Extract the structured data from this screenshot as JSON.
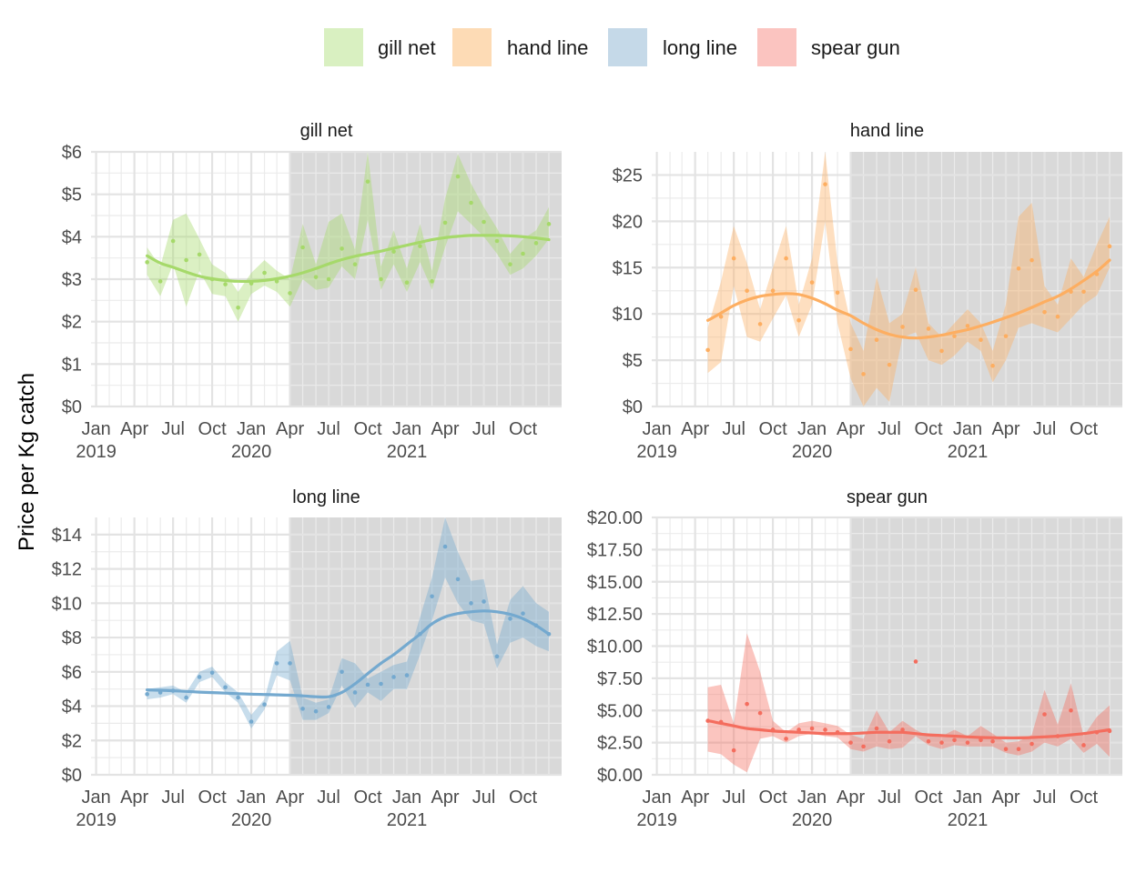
{
  "chart_data": {
    "type": "line",
    "ylabel": "Price per Kg catch",
    "xlabel": "",
    "legend": {
      "position": "top",
      "entries": [
        {
          "name": "gill net",
          "color": "#d9f0c1"
        },
        {
          "name": "hand line",
          "color": "#fddbb5"
        },
        {
          "name": "long line",
          "color": "#c5d9e8"
        },
        {
          "name": "spear gun",
          "color": "#fbc4c0"
        }
      ]
    },
    "x_ticks": [
      {
        "date": "2019-01-01",
        "label": [
          "Jan",
          "2019"
        ]
      },
      {
        "date": "2019-04-01",
        "label": [
          "Apr"
        ]
      },
      {
        "date": "2019-07-01",
        "label": [
          "Jul"
        ]
      },
      {
        "date": "2019-10-01",
        "label": [
          "Oct"
        ]
      },
      {
        "date": "2020-01-01",
        "label": [
          "Jan",
          "2020"
        ]
      },
      {
        "date": "2020-04-01",
        "label": [
          "Apr"
        ]
      },
      {
        "date": "2020-07-01",
        "label": [
          "Jul"
        ]
      },
      {
        "date": "2020-10-01",
        "label": [
          "Oct"
        ]
      },
      {
        "date": "2021-01-01",
        "label": [
          "Jan",
          "2021"
        ]
      },
      {
        "date": "2021-04-01",
        "label": [
          "Apr"
        ]
      },
      {
        "date": "2021-07-01",
        "label": [
          "Jul"
        ]
      },
      {
        "date": "2021-10-01",
        "label": [
          "Oct"
        ]
      }
    ],
    "x_range": [
      "2018-12-20",
      "2021-12-31"
    ],
    "shaded_period": {
      "start": "2020-04-01",
      "end": "2021-12-31"
    },
    "grid": true,
    "facets": [
      {
        "title": "gill net",
        "line_color": "#a6d96a",
        "fill_color": "#a6d96a",
        "ylim": [
          0,
          6
        ],
        "y_ticks": [
          0,
          1,
          2,
          3,
          4,
          5,
          6
        ],
        "y_tick_labels": [
          "$0",
          "$1",
          "$2",
          "$3",
          "$4",
          "$5",
          "$6"
        ],
        "dates": [
          "2019-05-01",
          "2019-06-01",
          "2019-07-01",
          "2019-08-01",
          "2019-09-01",
          "2019-10-01",
          "2019-11-01",
          "2019-12-01",
          "2020-01-01",
          "2020-02-01",
          "2020-03-01",
          "2020-04-01",
          "2020-05-01",
          "2020-06-01",
          "2020-07-01",
          "2020-08-01",
          "2020-09-01",
          "2020-10-01",
          "2020-11-01",
          "2020-12-01",
          "2021-01-01",
          "2021-02-01",
          "2021-03-01",
          "2021-04-01",
          "2021-05-01",
          "2021-06-01",
          "2021-07-01",
          "2021-08-01",
          "2021-09-01",
          "2021-10-01",
          "2021-11-01",
          "2021-12-01"
        ],
        "values": [
          3.4,
          2.95,
          3.9,
          3.45,
          3.58,
          3.0,
          2.88,
          2.33,
          2.9,
          3.15,
          2.95,
          2.67,
          3.75,
          3.05,
          3.0,
          3.72,
          3.35,
          5.3,
          3.0,
          3.65,
          2.92,
          3.78,
          2.95,
          4.33,
          5.42,
          4.8,
          4.35,
          3.9,
          3.35,
          3.6,
          3.85,
          4.3
        ],
        "lower": [
          3.1,
          2.6,
          3.35,
          2.35,
          3.2,
          2.65,
          2.6,
          2.0,
          2.65,
          2.85,
          2.7,
          2.35,
          3.0,
          2.75,
          2.8,
          3.3,
          3.0,
          4.4,
          2.75,
          3.35,
          2.7,
          3.4,
          2.75,
          3.75,
          4.6,
          4.3,
          4.0,
          3.6,
          3.1,
          3.25,
          3.55,
          3.95
        ],
        "upper": [
          3.75,
          3.3,
          4.4,
          4.55,
          3.95,
          3.35,
          3.15,
          2.7,
          3.15,
          3.45,
          3.2,
          3.0,
          4.3,
          3.35,
          4.35,
          4.55,
          3.7,
          6.0,
          3.3,
          4.15,
          3.25,
          4.3,
          3.2,
          4.9,
          5.95,
          5.25,
          4.7,
          4.2,
          3.6,
          3.95,
          4.15,
          4.7
        ],
        "smooth": [
          3.55,
          3.38,
          3.28,
          3.17,
          3.07,
          3.01,
          2.97,
          2.95,
          2.95,
          2.97,
          3.01,
          3.07,
          3.15,
          3.25,
          3.36,
          3.46,
          3.54,
          3.6,
          3.66,
          3.73,
          3.8,
          3.87,
          3.93,
          3.98,
          4.01,
          4.03,
          4.03,
          4.03,
          4.02,
          4.0,
          3.97,
          3.93
        ]
      },
      {
        "title": "hand line",
        "line_color": "#fdae61",
        "fill_color": "#fdae61",
        "ylim": [
          0,
          27.5
        ],
        "y_ticks": [
          0,
          5,
          10,
          15,
          20,
          25
        ],
        "y_tick_labels": [
          "$0",
          "$5",
          "$10",
          "$15",
          "$20",
          "$25"
        ],
        "dates": [
          "2019-05-01",
          "2019-06-01",
          "2019-07-01",
          "2019-08-01",
          "2019-09-01",
          "2019-10-01",
          "2019-11-01",
          "2019-12-01",
          "2020-01-01",
          "2020-02-01",
          "2020-03-01",
          "2020-04-01",
          "2020-05-01",
          "2020-06-01",
          "2020-07-01",
          "2020-08-01",
          "2020-09-01",
          "2020-10-01",
          "2020-11-01",
          "2020-12-01",
          "2021-01-01",
          "2021-02-01",
          "2021-03-01",
          "2021-04-01",
          "2021-05-01",
          "2021-06-01",
          "2021-07-01",
          "2021-08-01",
          "2021-09-01",
          "2021-10-01",
          "2021-11-01",
          "2021-12-01"
        ],
        "values": [
          6.1,
          9.7,
          16.0,
          12.5,
          8.9,
          12.5,
          16.0,
          9.3,
          13.4,
          24.0,
          12.3,
          6.2,
          3.5,
          7.2,
          4.5,
          8.6,
          12.6,
          8.4,
          6.0,
          7.6,
          8.7,
          7.2,
          4.4,
          7.6,
          14.9,
          15.8,
          10.2,
          9.7,
          12.4,
          12.4,
          14.3,
          17.3
        ],
        "lower": [
          3.6,
          4.8,
          13.0,
          7.5,
          7.0,
          9.5,
          12.0,
          7.5,
          11.0,
          20.0,
          9.0,
          3.0,
          0.0,
          2.0,
          0.5,
          7.5,
          8.0,
          5.0,
          4.5,
          5.5,
          7.0,
          6.0,
          2.6,
          5.0,
          8.5,
          9.0,
          8.5,
          8.0,
          9.5,
          11.0,
          12.0,
          15.0
        ],
        "upper": [
          8.5,
          13.5,
          19.5,
          15.5,
          10.5,
          15.0,
          19.5,
          11.0,
          16.0,
          27.5,
          15.5,
          9.0,
          6.0,
          14.0,
          9.0,
          10.0,
          15.0,
          9.0,
          7.5,
          9.0,
          10.5,
          9.0,
          6.0,
          11.0,
          20.5,
          22.0,
          13.0,
          11.0,
          16.0,
          14.0,
          17.5,
          20.5
        ],
        "smooth": [
          9.3,
          10.1,
          10.9,
          11.5,
          11.9,
          12.1,
          12.2,
          12.1,
          11.7,
          11.1,
          10.4,
          9.8,
          9.0,
          8.3,
          7.8,
          7.5,
          7.4,
          7.5,
          7.7,
          8.0,
          8.3,
          8.7,
          9.1,
          9.6,
          10.1,
          10.7,
          11.3,
          11.9,
          12.7,
          13.6,
          14.6,
          15.8
        ]
      },
      {
        "title": "long line",
        "line_color": "#74a9cf",
        "fill_color": "#74a9cf",
        "ylim": [
          0,
          15
        ],
        "y_ticks": [
          0,
          2,
          4,
          6,
          8,
          10,
          12,
          14
        ],
        "y_tick_labels": [
          "$0",
          "$2",
          "$4",
          "$6",
          "$8",
          "$10",
          "$12",
          "$14"
        ],
        "dates": [
          "2019-05-01",
          "2019-06-01",
          "2019-07-01",
          "2019-08-01",
          "2019-09-01",
          "2019-10-01",
          "2019-11-01",
          "2019-12-01",
          "2020-01-01",
          "2020-02-01",
          "2020-03-01",
          "2020-04-01",
          "2020-05-01",
          "2020-06-01",
          "2020-07-01",
          "2020-08-01",
          "2020-09-01",
          "2020-10-01",
          "2020-11-01",
          "2020-12-01",
          "2021-01-01",
          "2021-02-01",
          "2021-03-01",
          "2021-04-01",
          "2021-05-01",
          "2021-06-01",
          "2021-07-01",
          "2021-08-01",
          "2021-09-01",
          "2021-10-01",
          "2021-11-01",
          "2021-12-01"
        ],
        "values": [
          4.7,
          4.8,
          4.9,
          4.5,
          5.7,
          5.95,
          5.1,
          4.5,
          3.1,
          4.1,
          6.5,
          6.5,
          3.85,
          3.7,
          3.95,
          6.0,
          4.8,
          5.25,
          5.3,
          5.7,
          5.8,
          8.2,
          10.4,
          13.3,
          11.4,
          10.0,
          10.1,
          6.9,
          9.1,
          9.4,
          8.7,
          8.2
        ],
        "lower": [
          4.4,
          4.5,
          4.7,
          4.2,
          5.4,
          5.7,
          4.8,
          4.2,
          2.7,
          3.8,
          5.8,
          5.5,
          3.2,
          3.2,
          3.6,
          5.2,
          3.9,
          4.8,
          4.3,
          5.0,
          5.0,
          7.0,
          9.0,
          11.5,
          10.0,
          9.0,
          8.8,
          6.2,
          7.7,
          8.0,
          7.5,
          7.2
        ],
        "upper": [
          5.0,
          5.1,
          5.2,
          4.8,
          6.0,
          6.3,
          5.4,
          4.8,
          3.5,
          4.4,
          7.2,
          7.8,
          4.5,
          4.2,
          4.4,
          6.8,
          6.5,
          5.6,
          6.0,
          6.4,
          6.6,
          9.2,
          11.5,
          15.0,
          13.0,
          11.3,
          11.4,
          7.6,
          10.2,
          11.0,
          10.0,
          9.5
        ],
        "smooth": [
          4.95,
          4.93,
          4.9,
          4.86,
          4.82,
          4.79,
          4.76,
          4.73,
          4.7,
          4.68,
          4.66,
          4.64,
          4.6,
          4.55,
          4.55,
          4.8,
          5.3,
          5.9,
          6.5,
          7.0,
          7.6,
          8.2,
          8.8,
          9.2,
          9.4,
          9.5,
          9.55,
          9.5,
          9.35,
          9.1,
          8.7,
          8.2
        ]
      },
      {
        "title": "spear gun",
        "line_color": "#f46d5e",
        "fill_color": "#f46d5e",
        "ylim": [
          0,
          20
        ],
        "y_ticks": [
          0,
          2.5,
          5,
          7.5,
          10,
          12.5,
          15,
          17.5,
          20
        ],
        "y_tick_labels": [
          "$0.00",
          "$2.50",
          "$5.00",
          "$7.50",
          "$10.00",
          "$12.50",
          "$15.00",
          "$17.50",
          "$20.00"
        ],
        "dates": [
          "2019-05-01",
          "2019-06-01",
          "2019-07-01",
          "2019-08-01",
          "2019-09-01",
          "2019-10-01",
          "2019-11-01",
          "2019-12-01",
          "2020-01-01",
          "2020-02-01",
          "2020-03-01",
          "2020-04-01",
          "2020-05-01",
          "2020-06-01",
          "2020-07-01",
          "2020-08-01",
          "2020-09-01",
          "2020-10-01",
          "2020-11-01",
          "2020-12-01",
          "2021-01-01",
          "2021-02-01",
          "2021-03-01",
          "2021-04-01",
          "2021-05-01",
          "2021-06-01",
          "2021-07-01",
          "2021-08-01",
          "2021-09-01",
          "2021-10-01",
          "2021-11-01",
          "2021-12-01"
        ],
        "values": [
          4.2,
          4.1,
          1.9,
          5.5,
          4.8,
          3.5,
          2.8,
          3.5,
          3.6,
          3.5,
          3.3,
          2.5,
          2.2,
          3.6,
          2.6,
          3.5,
          8.8,
          2.6,
          2.5,
          2.7,
          2.5,
          2.7,
          2.6,
          2.0,
          2.0,
          2.4,
          4.7,
          3.0,
          5.0,
          2.3,
          3.3,
          3.4
        ],
        "lower": [
          1.8,
          1.6,
          0.8,
          0.2,
          2.8,
          3.0,
          2.5,
          3.0,
          3.2,
          3.0,
          2.9,
          2.0,
          1.8,
          2.2,
          2.0,
          2.1,
          3.0,
          2.3,
          2.0,
          2.3,
          2.2,
          2.2,
          2.2,
          1.7,
          1.5,
          1.8,
          2.5,
          2.2,
          2.8,
          1.7,
          2.4,
          1.4
        ],
        "upper": [
          6.8,
          7.0,
          4.0,
          11.0,
          8.0,
          4.2,
          3.3,
          4.0,
          4.2,
          4.0,
          3.8,
          3.1,
          2.8,
          5.0,
          3.3,
          4.2,
          3.5,
          3.0,
          3.0,
          3.5,
          3.0,
          3.8,
          3.2,
          2.5,
          2.6,
          3.1,
          6.6,
          3.9,
          7.1,
          3.0,
          4.5,
          5.4
        ],
        "smooth": [
          4.2,
          4.0,
          3.8,
          3.6,
          3.5,
          3.4,
          3.35,
          3.3,
          3.25,
          3.2,
          3.2,
          3.2,
          3.25,
          3.3,
          3.3,
          3.3,
          3.2,
          3.1,
          3.05,
          3.0,
          2.95,
          2.9,
          2.88,
          2.87,
          2.87,
          2.9,
          2.95,
          3.0,
          3.1,
          3.2,
          3.35,
          3.5
        ]
      }
    ]
  }
}
